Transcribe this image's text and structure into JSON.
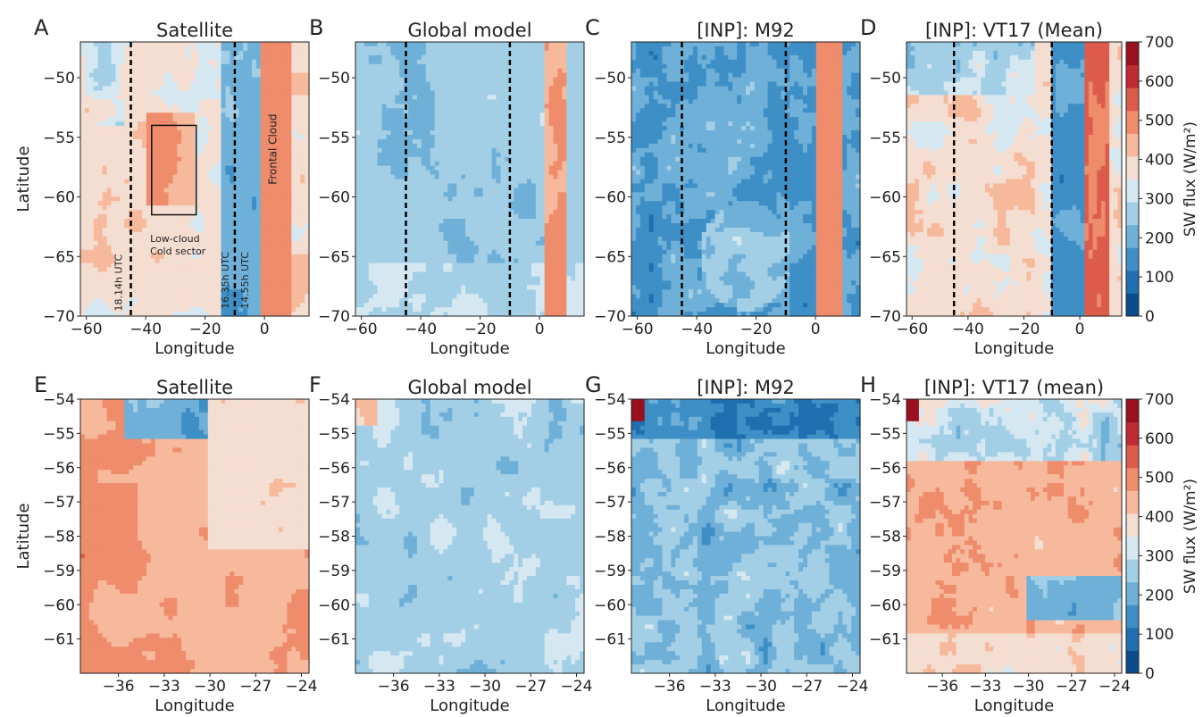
{
  "figure": {
    "colorbar": {
      "label": "SW flux (W/m²)",
      "ticks": [
        "0",
        "100",
        "200",
        "300",
        "400",
        "500",
        "600",
        "700"
      ],
      "range": [
        0,
        700
      ],
      "colors": [
        "#0b4c8c",
        "#1f6fb0",
        "#3d8fc6",
        "#6fb0d8",
        "#a3cfe6",
        "#d5e8f2",
        "#f4ddd1",
        "#f7b99c",
        "#ee8c6b",
        "#dc5c4c",
        "#bf2a33",
        "#99111f"
      ]
    }
  },
  "chart_data": [
    {
      "panel": "A",
      "title": "Satellite",
      "type": "heatmap",
      "xlabel": "Longitude",
      "ylabel": "Latitude",
      "xticks": [
        "−60",
        "−40",
        "−20",
        "0"
      ],
      "yticks": [
        "−50",
        "−55",
        "−60",
        "−65",
        "−70"
      ],
      "xlim": [
        -62,
        15
      ],
      "ylim": [
        -70,
        -47
      ],
      "annotations": [
        "Low-cloud\nCold sector",
        "Frontal Cloud",
        "18.14h UTC",
        "16.35h UTC",
        "14.55h UTC"
      ],
      "dashed_lines_x": [
        -45,
        -10
      ],
      "box": {
        "lon": [
          -38,
          -23
        ],
        "lat": [
          -61.5,
          -54
        ]
      }
    },
    {
      "panel": "B",
      "title": "Global model",
      "type": "heatmap",
      "xlabel": "Longitude",
      "xticks": [
        "−60",
        "−40",
        "−20",
        "0"
      ],
      "yticks": [
        "−50",
        "−55",
        "−60",
        "−65",
        "−70"
      ],
      "xlim": [
        -62,
        15
      ],
      "ylim": [
        -70,
        -47
      ],
      "dashed_lines_x": [
        -45,
        -10
      ]
    },
    {
      "panel": "C",
      "title": "[INP]: M92",
      "type": "heatmap",
      "xlabel": "Longitude",
      "xticks": [
        "−60",
        "−40",
        "−20",
        "0"
      ],
      "yticks": [
        "−50",
        "−55",
        "−60",
        "−65",
        "−70"
      ],
      "xlim": [
        -62,
        15
      ],
      "ylim": [
        -70,
        -47
      ],
      "dashed_lines_x": [
        -45,
        -10
      ]
    },
    {
      "panel": "D",
      "title": "[INP]: VT17 (Mean)",
      "type": "heatmap",
      "xlabel": "Longitude",
      "xticks": [
        "−60",
        "−40",
        "−20",
        "0"
      ],
      "yticks": [
        "−50",
        "−55",
        "−60",
        "−65",
        "−70"
      ],
      "xlim": [
        -62,
        15
      ],
      "ylim": [
        -70,
        -47
      ],
      "dashed_lines_x": [
        -45,
        -10
      ]
    },
    {
      "panel": "E",
      "title": "Satellite",
      "type": "heatmap",
      "xlabel": "Longitude",
      "ylabel": "Latitude",
      "xticks": [
        "−36",
        "−33",
        "−30",
        "−27",
        "−24"
      ],
      "yticks": [
        "−54",
        "−55",
        "−56",
        "−57",
        "−58",
        "−59",
        "−60",
        "−61"
      ],
      "xlim": [
        -38.5,
        -23.5
      ],
      "ylim": [
        -62,
        -54
      ]
    },
    {
      "panel": "F",
      "title": "Global model",
      "type": "heatmap",
      "xlabel": "Longitude",
      "xticks": [
        "−36",
        "−33",
        "−30",
        "−27",
        "−24"
      ],
      "yticks": [
        "−54",
        "−55",
        "−56",
        "−57",
        "−58",
        "−59",
        "−60",
        "−61"
      ],
      "xlim": [
        -38.5,
        -23.5
      ],
      "ylim": [
        -62,
        -54
      ]
    },
    {
      "panel": "G",
      "title": "[INP]: M92",
      "type": "heatmap",
      "xlabel": "Longitude",
      "xticks": [
        "−36",
        "−33",
        "−30",
        "−27",
        "−24"
      ],
      "yticks": [
        "−54",
        "−55",
        "−56",
        "−57",
        "−58",
        "−59",
        "−60",
        "−61"
      ],
      "xlim": [
        -38.5,
        -23.5
      ],
      "ylim": [
        -62,
        -54
      ]
    },
    {
      "panel": "H",
      "title": "[INP]: VT17 (mean)",
      "type": "heatmap",
      "xlabel": "Longitude",
      "xticks": [
        "−36",
        "−33",
        "−30",
        "−27",
        "−24"
      ],
      "yticks": [
        "−54",
        "−55",
        "−56",
        "−57",
        "−58",
        "−59",
        "−60",
        "−61"
      ],
      "xlim": [
        -38.5,
        -23.5
      ],
      "ylim": [
        -62,
        -54
      ]
    }
  ]
}
